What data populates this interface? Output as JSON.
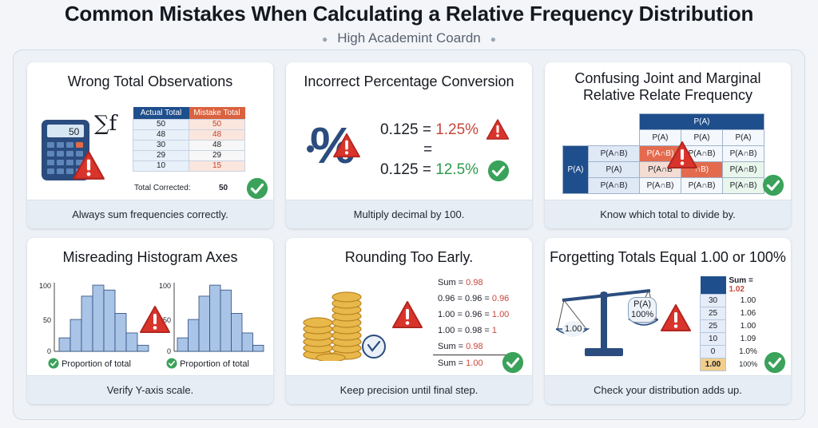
{
  "header": {
    "title": "Common Mistakes When Calculating a Relative Frequency Distribution",
    "subtitle": "High Academint Coardn"
  },
  "cards": [
    {
      "title": "Wrong Total Observations",
      "footer": "Always sum frequencies correctly.",
      "calc_display": "50",
      "sigma_label": "∑f",
      "table": {
        "headers": [
          "Actual Total",
          "Mistake Total"
        ],
        "rows": [
          [
            "50",
            "50"
          ],
          [
            "48",
            "48"
          ],
          [
            "30",
            "48"
          ],
          [
            "29",
            "29"
          ],
          [
            "10",
            "15"
          ]
        ],
        "total_label": "Total Corrected:",
        "total_value": "50"
      }
    },
    {
      "title": "Incorrect Percentage Conversion",
      "footer": "Multiply decimal by 100.",
      "lines": [
        {
          "left": "0.125 =",
          "right": "1.25%"
        },
        {
          "left": "=",
          "right": ""
        },
        {
          "left": "0.125 =",
          "right": "12.5%"
        }
      ]
    },
    {
      "title_line1": "Confusing Joint and Marginal",
      "title_line2": "Relative Relate Frequency",
      "footer": "Know which total to divide by.",
      "grid": {
        "top": "P(A)",
        "cols": [
          "P(A)",
          "P(A)",
          "P(A)"
        ],
        "side": "P(A)",
        "rows": [
          [
            "P(A∩B)",
            "P(A∩B)",
            "P(A∩B)",
            "P(A∩B)"
          ],
          [
            "P(A)",
            "P(A∩B",
            "∩B)",
            "P(A∩B)"
          ],
          [
            "P(A∩B)",
            "P(A∩B)",
            "P(A∩B)",
            "P(A∩B)"
          ]
        ]
      }
    },
    {
      "title": "Misreading Histogram Axes",
      "footer": "Verify Y-axis scale.",
      "histograms": [
        {
          "y_ticks": [
            "100",
            "50",
            "0"
          ],
          "caption": "Proportion of total",
          "values": [
            22,
            52,
            90,
            108,
            100,
            62,
            30,
            10
          ]
        },
        {
          "y_ticks": [
            "100",
            "50",
            "0"
          ],
          "caption": "Proportion of total",
          "values": [
            22,
            52,
            90,
            108,
            100,
            62,
            30,
            10
          ]
        }
      ]
    },
    {
      "title": "Rounding Too Early.",
      "footer": "Keep precision until final step.",
      "steps": [
        {
          "text": "Sum = ",
          "value": "0.98"
        },
        {
          "text": "0.96 = 0.96 = ",
          "value": "0.96"
        },
        {
          "text": "1.00 = 0.96 = ",
          "value": "1.00"
        },
        {
          "text": "1.00 = 0.98 = ",
          "value": "1"
        },
        {
          "text": "Sum = ",
          "value": "0.98"
        },
        {
          "text": "Sum = ",
          "value": "1.00"
        }
      ]
    },
    {
      "title": "Forgetting Totals Equal 1.00 or 100%",
      "footer": "Check your distribution adds up.",
      "scale_left": "1.00",
      "scale_right_l1": "P(A)",
      "scale_right_l2": "100%",
      "sum_label": "Sum = ",
      "sum_value": "1.02",
      "rows": [
        [
          "30",
          "1.00"
        ],
        [
          "25",
          "1.06"
        ],
        [
          "25",
          "1.00"
        ],
        [
          "10",
          "1.09"
        ],
        [
          "0",
          "1.0%"
        ],
        [
          "1.00",
          "100%"
        ]
      ]
    }
  ]
}
